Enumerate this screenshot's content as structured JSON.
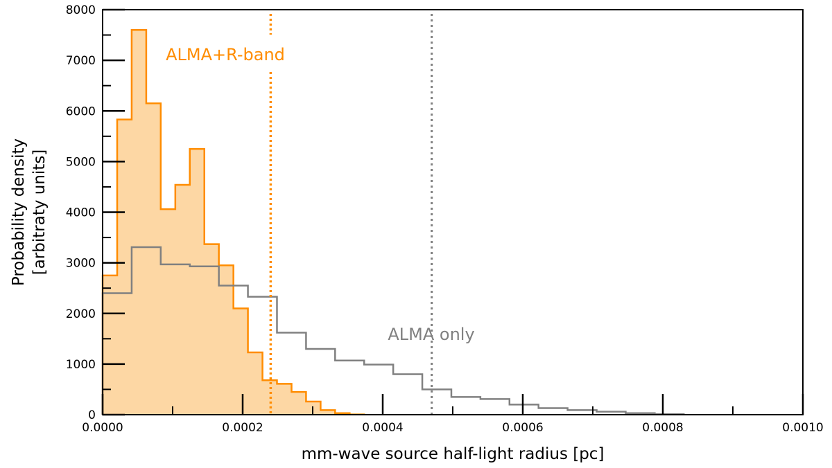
{
  "chart_data": {
    "type": "histogram",
    "xlabel": "mm-wave source half-light radius [pc]",
    "ylabel_lines": [
      "Probability density",
      "[arbitraty units]"
    ],
    "xlim": [
      0.0,
      0.001
    ],
    "ylim": [
      0,
      8000
    ],
    "x_ticks": [
      0.0,
      0.0002,
      0.0004,
      0.0006,
      0.0008,
      0.001
    ],
    "x_tick_labels": [
      "0.0000",
      "0.0002",
      "0.0004",
      "0.0006",
      "0.0008",
      "0.0010"
    ],
    "y_ticks": [
      0,
      1000,
      2000,
      3000,
      4000,
      5000,
      6000,
      7000,
      8000
    ],
    "y_tick_labels": [
      "0",
      "1000",
      "2000",
      "3000",
      "4000",
      "5000",
      "6000",
      "7000",
      "8000"
    ],
    "x_minor_ticks": [
      0.0001,
      0.0003,
      0.0005,
      0.0007,
      0.0009
    ],
    "y_minor_ticks": [
      500,
      1500,
      2500,
      3500,
      4500,
      5500,
      6500,
      7500
    ],
    "grid": false,
    "series": [
      {
        "name": "ALMA+R-band",
        "color": "#ff8c00",
        "fill": "#fdd7a4",
        "filled": true,
        "bin_edges": [
          0.0,
          2.08e-05,
          4.15e-05,
          6.23e-05,
          8.3e-05,
          0.0001038,
          0.0001245,
          0.0001453,
          0.000166,
          0.0001868,
          0.0002075,
          0.0002283,
          0.000249,
          0.0002698,
          0.0002905,
          0.0003113,
          0.000332,
          0.0003528,
          0.0003735
        ],
        "values": [
          2750,
          5830,
          7600,
          6150,
          4060,
          4540,
          5250,
          3370,
          2950,
          2100,
          1230,
          680,
          610,
          450,
          260,
          90,
          30,
          5
        ],
        "median_line": 0.00024,
        "label_text": "ALMA+R-band"
      },
      {
        "name": "ALMA only",
        "color": "#808080",
        "filled": false,
        "bin_edges": [
          0.0,
          4.15e-05,
          8.3e-05,
          0.0001245,
          0.000166,
          0.0002075,
          0.000249,
          0.0002905,
          0.000332,
          0.0003735,
          0.000415,
          0.0004565,
          0.000498,
          0.0005395,
          0.000581,
          0.0006225,
          0.000664,
          0.0007055,
          0.000747,
          0.0007885,
          0.00083
        ],
        "values": [
          2400,
          3310,
          2970,
          2930,
          2550,
          2330,
          1620,
          1300,
          1070,
          990,
          800,
          500,
          350,
          310,
          200,
          130,
          90,
          60,
          30,
          10
        ],
        "median_line": 0.00047,
        "label_text": "ALMA only"
      }
    ]
  }
}
